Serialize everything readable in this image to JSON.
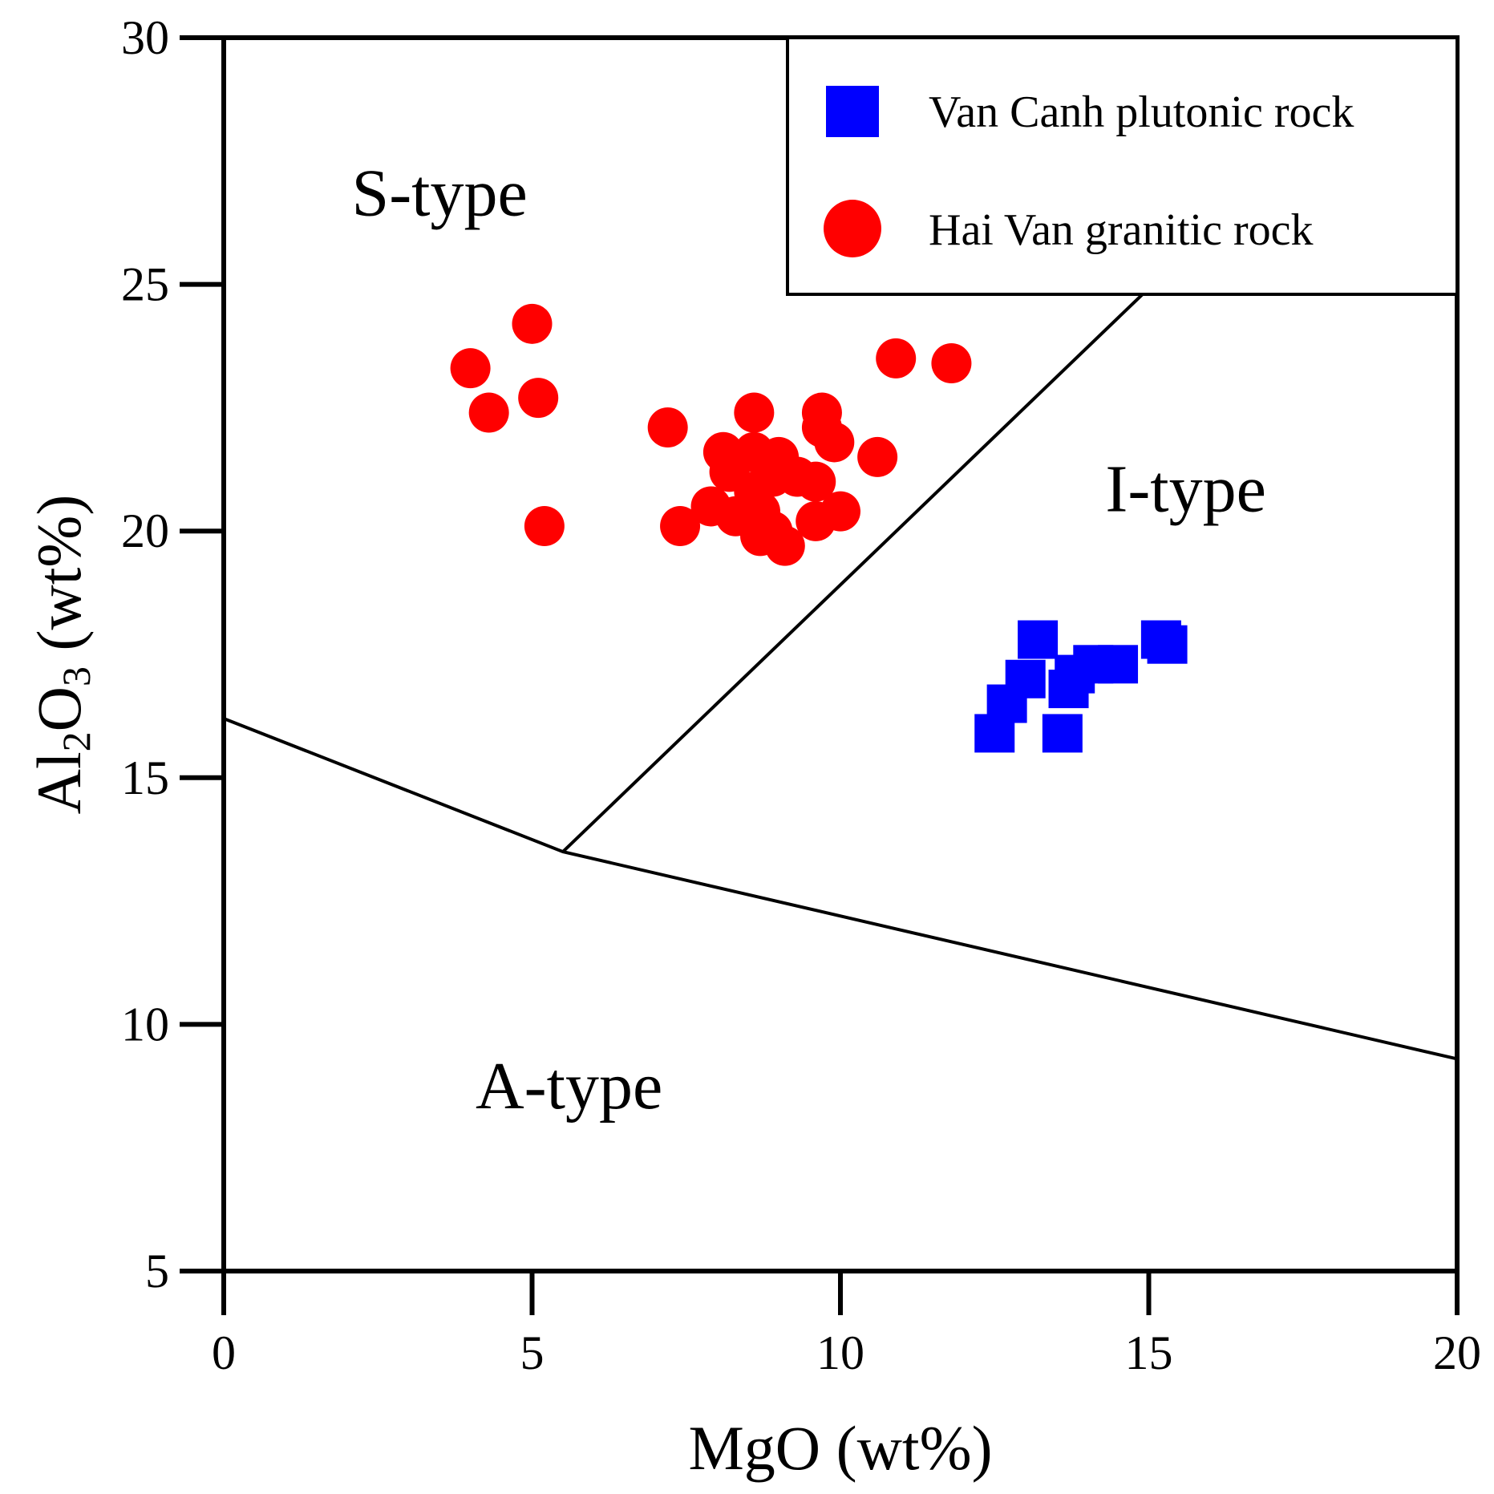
{
  "chart_data": {
    "type": "scatter",
    "title": "",
    "xlabel": "MgO (wt%)",
    "ylabel_parts": {
      "main": "Al",
      "sub1": "2",
      "mid": "O",
      "sub2": "3",
      "tail": " (wt%)"
    },
    "xlim": [
      0,
      20
    ],
    "ylim": [
      5,
      30
    ],
    "x_ticks": [
      0,
      5,
      10,
      15,
      20
    ],
    "y_ticks": [
      5,
      10,
      15,
      20,
      25,
      30
    ],
    "x_tick_labels": [
      "0",
      "5",
      "10",
      "15",
      "20"
    ],
    "y_tick_labels": [
      "5",
      "10",
      "15",
      "20",
      "25",
      "30"
    ],
    "grid": false,
    "legend_position": "top-right",
    "regions": [
      {
        "label": "S-type",
        "x": 3.5,
        "y": 26.4
      },
      {
        "label": "I-type",
        "x": 15.6,
        "y": 20.4
      },
      {
        "label": "A-type",
        "x": 5.6,
        "y": 8.3
      }
    ],
    "boundary_lines": [
      {
        "name": "lower-boundary",
        "points": [
          [
            0,
            16.2
          ],
          [
            5.5,
            13.5
          ],
          [
            20,
            9.3
          ]
        ]
      },
      {
        "name": "s-i-boundary",
        "points": [
          [
            5.5,
            13.5
          ],
          [
            14.9,
            24.8
          ]
        ]
      }
    ],
    "series": [
      {
        "name": "Van Canh plutonic rock",
        "marker": "square",
        "color": "#0000ff",
        "points": [
          [
            13.2,
            17.8
          ],
          [
            15.3,
            17.7
          ],
          [
            15.2,
            17.8
          ],
          [
            14.5,
            17.3
          ],
          [
            14.1,
            17.3
          ],
          [
            13.8,
            17.1
          ],
          [
            13.7,
            16.8
          ],
          [
            13.0,
            17.0
          ],
          [
            12.7,
            16.5
          ],
          [
            12.5,
            15.9
          ],
          [
            13.6,
            15.9
          ]
        ]
      },
      {
        "name": "Hai Van granitic rock",
        "marker": "circle",
        "color": "#ff0000",
        "points": [
          [
            4.0,
            23.3
          ],
          [
            5.0,
            24.2
          ],
          [
            4.3,
            22.4
          ],
          [
            5.1,
            22.7
          ],
          [
            5.2,
            20.1
          ],
          [
            10.9,
            23.5
          ],
          [
            11.8,
            23.4
          ],
          [
            7.2,
            22.1
          ],
          [
            8.6,
            22.4
          ],
          [
            9.7,
            22.4
          ],
          [
            9.7,
            22.1
          ],
          [
            9.9,
            21.8
          ],
          [
            10.6,
            21.5
          ],
          [
            8.1,
            21.6
          ],
          [
            8.6,
            21.6
          ],
          [
            9.0,
            21.5
          ],
          [
            8.2,
            21.2
          ],
          [
            8.9,
            21.1
          ],
          [
            9.3,
            21.1
          ],
          [
            9.6,
            21.0
          ],
          [
            8.6,
            20.8
          ],
          [
            7.9,
            20.5
          ],
          [
            8.3,
            20.3
          ],
          [
            8.7,
            20.4
          ],
          [
            8.9,
            20.0
          ],
          [
            8.7,
            19.9
          ],
          [
            7.4,
            20.1
          ],
          [
            9.1,
            19.7
          ],
          [
            9.6,
            20.2
          ],
          [
            10.0,
            20.4
          ]
        ]
      }
    ]
  }
}
